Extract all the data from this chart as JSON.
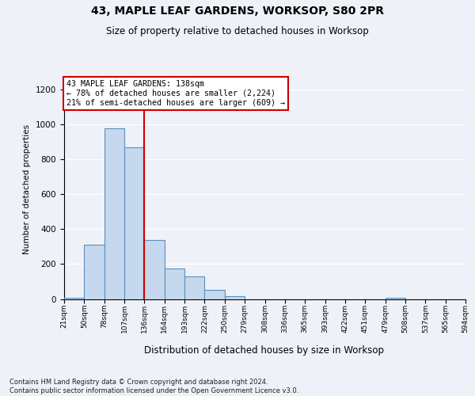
{
  "title1": "43, MAPLE LEAF GARDENS, WORKSOP, S80 2PR",
  "title2": "Size of property relative to detached houses in Worksop",
  "xlabel": "Distribution of detached houses by size in Worksop",
  "ylabel": "Number of detached properties",
  "bin_labels": [
    "21sqm",
    "50sqm",
    "78sqm",
    "107sqm",
    "136sqm",
    "164sqm",
    "193sqm",
    "222sqm",
    "250sqm",
    "279sqm",
    "308sqm",
    "336sqm",
    "365sqm",
    "393sqm",
    "422sqm",
    "451sqm",
    "479sqm",
    "508sqm",
    "537sqm",
    "565sqm",
    "594sqm"
  ],
  "bar_heights": [
    5,
    310,
    980,
    870,
    340,
    175,
    130,
    50,
    15,
    0,
    0,
    0,
    0,
    0,
    0,
    0,
    5,
    0,
    0,
    0
  ],
  "bar_color": "#c5d8ed",
  "bar_edge_color": "#5a8fbf",
  "reference_line_x": 4,
  "reference_line_color": "#cc0000",
  "annotation_line1": "43 MAPLE LEAF GARDENS: 138sqm",
  "annotation_line2": "← 78% of detached houses are smaller (2,224)",
  "annotation_line3": "21% of semi-detached houses are larger (609) →",
  "annotation_box_facecolor": "#ffffff",
  "annotation_box_edgecolor": "#cc0000",
  "ylim": [
    0,
    1260
  ],
  "yticks": [
    0,
    200,
    400,
    600,
    800,
    1000,
    1200
  ],
  "footnote_line1": "Contains HM Land Registry data © Crown copyright and database right 2024.",
  "footnote_line2": "Contains public sector information licensed under the Open Government Licence v3.0.",
  "background_color": "#eef2f8",
  "grid_color": "#ffffff"
}
